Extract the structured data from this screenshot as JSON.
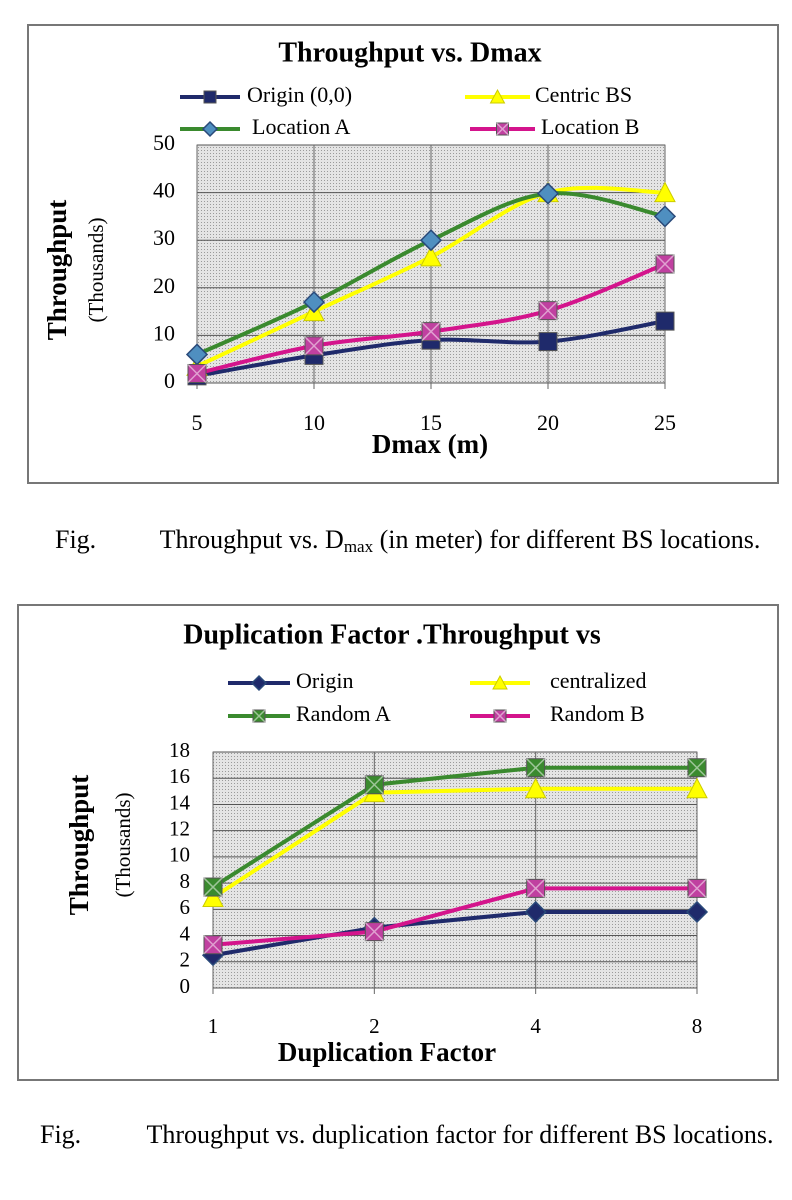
{
  "chart_data": [
    {
      "type": "line",
      "title": "Throughput vs. Dmax",
      "xlabel": "Dmax (m)",
      "ylabel": "Throughput",
      "ylabel_units": "(Thousands)",
      "x": [
        5,
        10,
        15,
        20,
        25
      ],
      "xlim": [
        5,
        25
      ],
      "xticks": [
        5,
        10,
        15,
        20,
        25
      ],
      "ylim": [
        0,
        50
      ],
      "yticks": [
        0,
        10,
        20,
        30,
        40,
        50
      ],
      "grid": true,
      "smooth": true,
      "series": [
        {
          "name": "Origin (0,0)",
          "color": "#1f2a6b",
          "marker": "square",
          "marker_color": "#1f2a6b",
          "values": [
            1.5,
            5.8,
            9,
            8.7,
            13
          ]
        },
        {
          "name": "Centric BS",
          "color": "#ffff00",
          "marker": "triangle",
          "marker_color": "#ffff00",
          "values": [
            3.5,
            15,
            26.5,
            40,
            40
          ]
        },
        {
          "name": "Location  A",
          "color": "#3a8a2e",
          "marker": "diamond",
          "marker_color": "#4f8fc0",
          "values": [
            6,
            17,
            30,
            39.8,
            35
          ]
        },
        {
          "name": "Location B",
          "color": "#d4148c",
          "marker": "square-x",
          "marker_color": "#c040a0",
          "values": [
            2,
            7.8,
            10.8,
            15.2,
            25
          ]
        }
      ]
    },
    {
      "type": "line",
      "title": "Duplication Factor .Throughput vs",
      "xlabel": "Duplication Factor",
      "ylabel": "Throughput",
      "ylabel_units": "(Thousands)",
      "categories": [
        "1",
        "2",
        "4",
        "8"
      ],
      "ylim": [
        0,
        18
      ],
      "yticks": [
        0,
        2,
        4,
        6,
        8,
        10,
        12,
        14,
        16,
        18
      ],
      "grid": true,
      "smooth": false,
      "series": [
        {
          "name": "Origin",
          "color": "#1f2a6b",
          "marker": "diamond",
          "marker_color": "#1f2a6b",
          "values": [
            2.5,
            4.6,
            5.8,
            5.8
          ]
        },
        {
          "name": "centralized",
          "color": "#ffff00",
          "marker": "triangle",
          "marker_color": "#ffff00",
          "values": [
            6.9,
            14.9,
            15.2,
            15.2
          ]
        },
        {
          "name": "Random  A",
          "color": "#3a8a2e",
          "marker": "square-x",
          "marker_color": "#3a8a2e",
          "values": [
            7.7,
            15.5,
            16.8,
            16.8
          ]
        },
        {
          "name": "Random  B",
          "color": "#d4148c",
          "marker": "square-x",
          "marker_color": "#c040a0",
          "values": [
            3.3,
            4.3,
            7.6,
            7.6
          ]
        }
      ]
    }
  ],
  "captions": [
    {
      "label": "Fig.",
      "text": "Throughput vs. D",
      "subscript": "max",
      "text_after": " (in meter) for different BS locations."
    },
    {
      "label": "Fig.",
      "text": "Throughput vs. duplication factor for different BS locations."
    }
  ]
}
